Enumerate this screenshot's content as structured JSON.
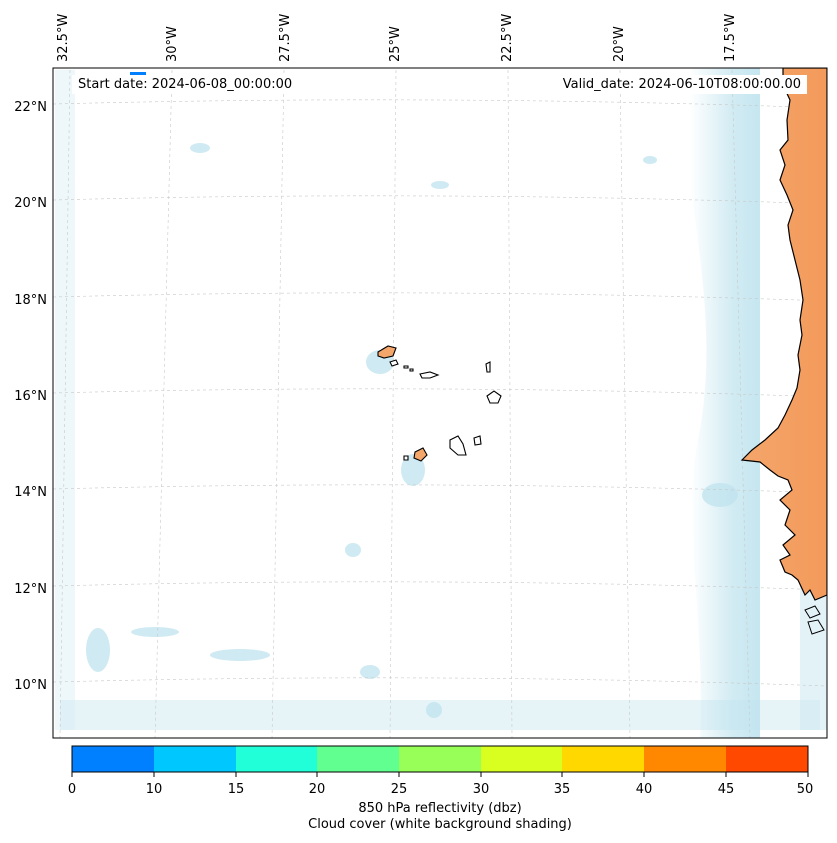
{
  "map": {
    "start_label": "Start date: 2024-06-08_00:00:00",
    "valid_label": "Valid_date: 2024-06-10T08:00:00.00",
    "lon_labels": [
      "32.5°W",
      "30°W",
      "27.5°W",
      "25°W",
      "22.5°W",
      "20°W",
      "17.5°W"
    ],
    "lat_labels": [
      "22°N",
      "20°N",
      "18°N",
      "16°N",
      "14°N",
      "12°N",
      "10°N"
    ],
    "land_fill_color": "#f4a66b",
    "cloud_color": "#bfe3ee",
    "coast_color": "#000000"
  },
  "colorbar": {
    "ticks": [
      "0",
      "10",
      "15",
      "20",
      "25",
      "30",
      "35",
      "40",
      "45",
      "50"
    ],
    "colors": [
      "#0080ff",
      "#00c8ff",
      "#20ffd8",
      "#60ff90",
      "#98ff58",
      "#d8ff20",
      "#ffd800",
      "#ff8800",
      "#ff4800"
    ],
    "title_line1": "850 hPa reflectivity (dbz)",
    "title_line2": "Cloud cover (white background shading)"
  }
}
